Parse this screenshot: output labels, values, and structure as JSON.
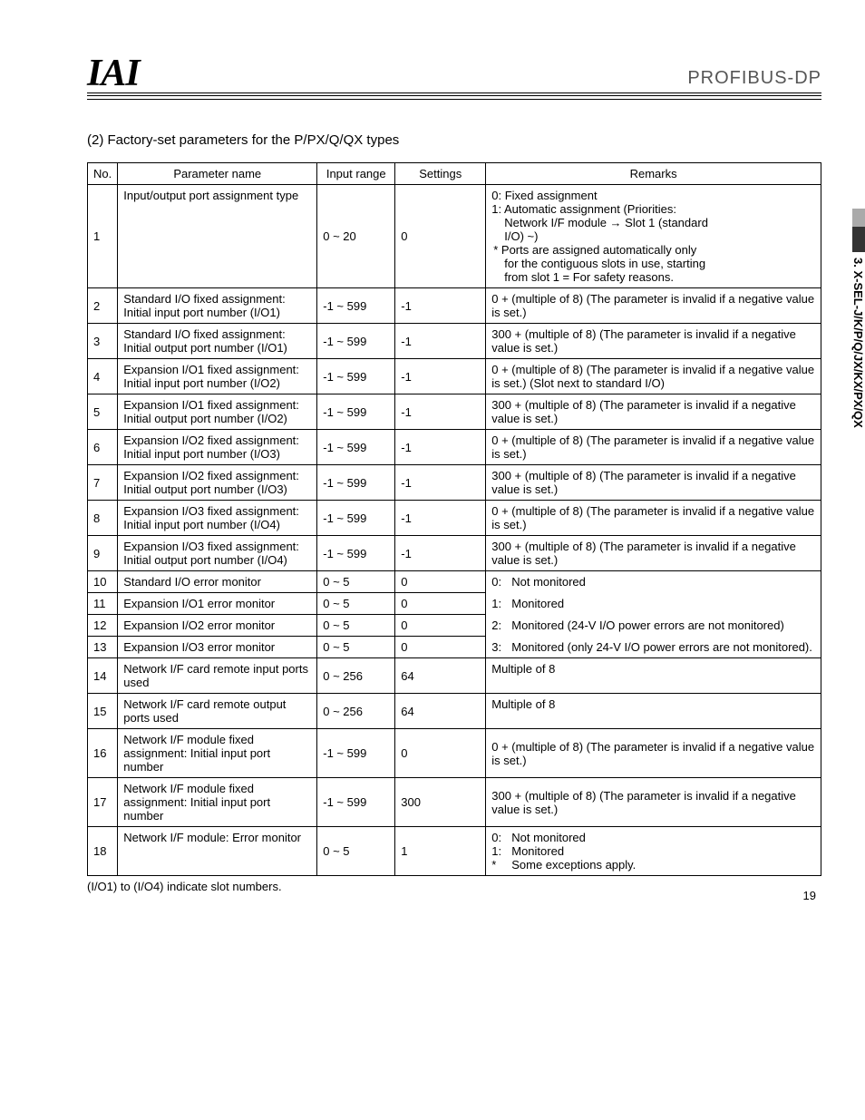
{
  "header": {
    "logo_text": "IAI",
    "right_text": "PROFIBUS-DP"
  },
  "side_tab": {
    "label": "3. X-SEL-J/K/P/Q/JX/KX/PX/QX"
  },
  "section_title": "(2)  Factory-set parameters for the P/PX/Q/QX types",
  "columns": [
    "No.",
    "Parameter name",
    "Input range",
    "Settings",
    "Remarks"
  ],
  "rows": [
    {
      "no": "1",
      "name": "Input/output port assignment type",
      "range": "0 ~ 20",
      "settings": "0",
      "remarks_lines": [
        {
          "text": "0: Fixed assignment"
        },
        {
          "text": "1: Automatic assignment (Priorities:"
        },
        {
          "text": "Network I/F module → Slot 1 (standard",
          "indent": true
        },
        {
          "text": "I/O) ~)",
          "indent": true
        },
        {
          "text": "Ports are assigned automatically only",
          "star": true,
          "indent": true
        },
        {
          "text": "for the contiguous slots in use, starting",
          "indent": true
        },
        {
          "text": "from slot 1 = For safety reasons.",
          "indent": true
        }
      ]
    },
    {
      "no": "2",
      "name": "Standard I/O fixed assignment: Initial input port number (I/O1)",
      "range": "-1 ~ 599",
      "settings": "-1",
      "remarks": "0 + (multiple of 8) (The parameter is invalid if a negative value is set.)"
    },
    {
      "no": "3",
      "name": "Standard I/O fixed assignment: Initial output port number (I/O1)",
      "range": "-1 ~ 599",
      "settings": "-1",
      "remarks": "300 + (multiple of 8) (The parameter is invalid if a negative value is set.)"
    },
    {
      "no": "4",
      "name": "Expansion I/O1 fixed assignment: Initial input port number (I/O2)",
      "range": "-1 ~ 599",
      "settings": "-1",
      "remarks": "0 + (multiple of 8) (The parameter is invalid if a negative value is set.) (Slot next to standard I/O)"
    },
    {
      "no": "5",
      "name": "Expansion I/O1 fixed assignment: Initial output port number (I/O2)",
      "range": "-1 ~ 599",
      "settings": "-1",
      "remarks": "300 + (multiple of 8) (The parameter is invalid if a negative value is set.)"
    },
    {
      "no": "6",
      "name": "Expansion I/O2 fixed assignment: Initial input port number (I/O3)",
      "range": "-1 ~ 599",
      "settings": "-1",
      "remarks": "0 + (multiple of 8) (The parameter is invalid if a negative value is set.)"
    },
    {
      "no": "7",
      "name": "Expansion I/O2 fixed assignment: Initial output port number (I/O3)",
      "range": "-1 ~ 599",
      "settings": "-1",
      "remarks": "300 + (multiple of 8) (The parameter is invalid if a negative value is set.)"
    },
    {
      "no": "8",
      "name": "Expansion I/O3 fixed assignment: Initial input port number (I/O4)",
      "range": "-1 ~ 599",
      "settings": "-1",
      "remarks": "0 + (multiple of 8) (The parameter is invalid if a negative value is set.)"
    },
    {
      "no": "9",
      "name": "Expansion I/O3 fixed assignment: Initial output port number (I/O4)",
      "range": "-1 ~ 599",
      "settings": "-1",
      "remarks": "300 + (multiple of 8) (The parameter is invalid if a negative value is set.)"
    },
    {
      "no": "10",
      "name": "Standard I/O error monitor",
      "range": "0 ~ 5",
      "settings": "0",
      "remarks_kv": {
        "k": "0:",
        "v": "Not monitored"
      },
      "merge": "top"
    },
    {
      "no": "11",
      "name": "Expansion I/O1 error monitor",
      "range": "0 ~ 5",
      "settings": "0",
      "remarks_kv": {
        "k": "1:",
        "v": "Monitored"
      },
      "merge": "mid"
    },
    {
      "no": "12",
      "name": "Expansion I/O2 error monitor",
      "range": "0 ~ 5",
      "settings": "0",
      "remarks_kv": {
        "k": "2:",
        "v": "Monitored (24-V I/O power errors are not monitored)"
      },
      "merge": "mid"
    },
    {
      "no": "13",
      "name": "Expansion I/O3 error monitor",
      "range": "0 ~ 5",
      "settings": "0",
      "remarks_kv": {
        "k": "3:",
        "v": "Monitored (only 24-V I/O power errors are not monitored)."
      },
      "merge": "bot"
    },
    {
      "no": "14",
      "name": "Network I/F card remote input ports used",
      "range": "0 ~ 256",
      "settings": "64",
      "remarks": "Multiple of 8"
    },
    {
      "no": "15",
      "name": "Network I/F card remote output ports used",
      "range": "0 ~ 256",
      "settings": "64",
      "remarks": "Multiple of 8"
    },
    {
      "no": "16",
      "name": "Network I/F module fixed assignment: Initial input port number",
      "range": "-1 ~ 599",
      "settings": "0",
      "remarks": "0 + (multiple of 8) (The parameter is invalid if a negative value is set.)"
    },
    {
      "no": "17",
      "name": "Network I/F module fixed assignment: Initial input port number",
      "range": "-1 ~ 599",
      "settings": "300",
      "remarks": "300 + (multiple of 8) (The parameter is invalid if a negative value is set.)"
    },
    {
      "no": "18",
      "name": "Network I/F module: Error monitor",
      "range": "0 ~ 5",
      "settings": "1",
      "remarks_multi_kv": [
        {
          "k": "0:",
          "v": "Not monitored"
        },
        {
          "k": "1:",
          "v": "Monitored"
        },
        {
          "k": "*",
          "v": "Some exceptions apply."
        }
      ]
    }
  ],
  "footnote": "(I/O1) to (I/O4) indicate slot numbers.",
  "page_number": "19"
}
